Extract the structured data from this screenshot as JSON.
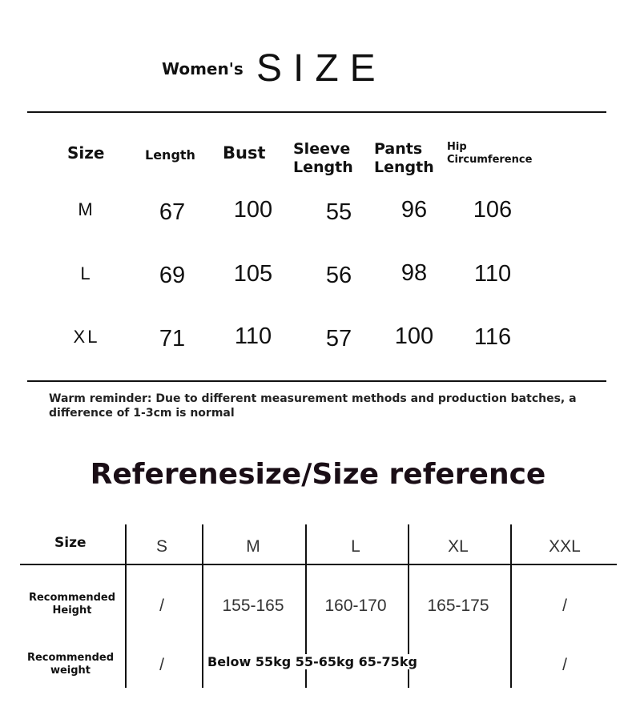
{
  "title": {
    "prefix": "Women's",
    "main": "SIZE"
  },
  "size_table": {
    "headers": [
      "Size",
      "Length",
      "Bust",
      "Sleeve Length",
      "Pants Length",
      "Hip Circumference"
    ],
    "rows": [
      [
        "M",
        "67",
        "100",
        "55",
        "96",
        "106"
      ],
      [
        "L",
        "69",
        "105",
        "56",
        "98",
        "110"
      ],
      [
        "XL",
        "71",
        "110",
        "57",
        "100",
        "116"
      ]
    ]
  },
  "reminder": "Warm reminder: Due to different measurement methods and production batches, a difference of 1-3cm is normal",
  "reference": {
    "title": "Referenesize/Size reference",
    "headers": [
      "Size",
      "S",
      "M",
      "L",
      "XL",
      "XXL"
    ],
    "height_label": "Recommended Height",
    "height_values": [
      "/",
      "155-165",
      "160-170",
      "165-175",
      "/"
    ],
    "weight_label": "Recommended weight",
    "weight_s": "/",
    "weight_text": "Below 55kg 55-65kg 65-75kg",
    "weight_xxl": "/"
  }
}
